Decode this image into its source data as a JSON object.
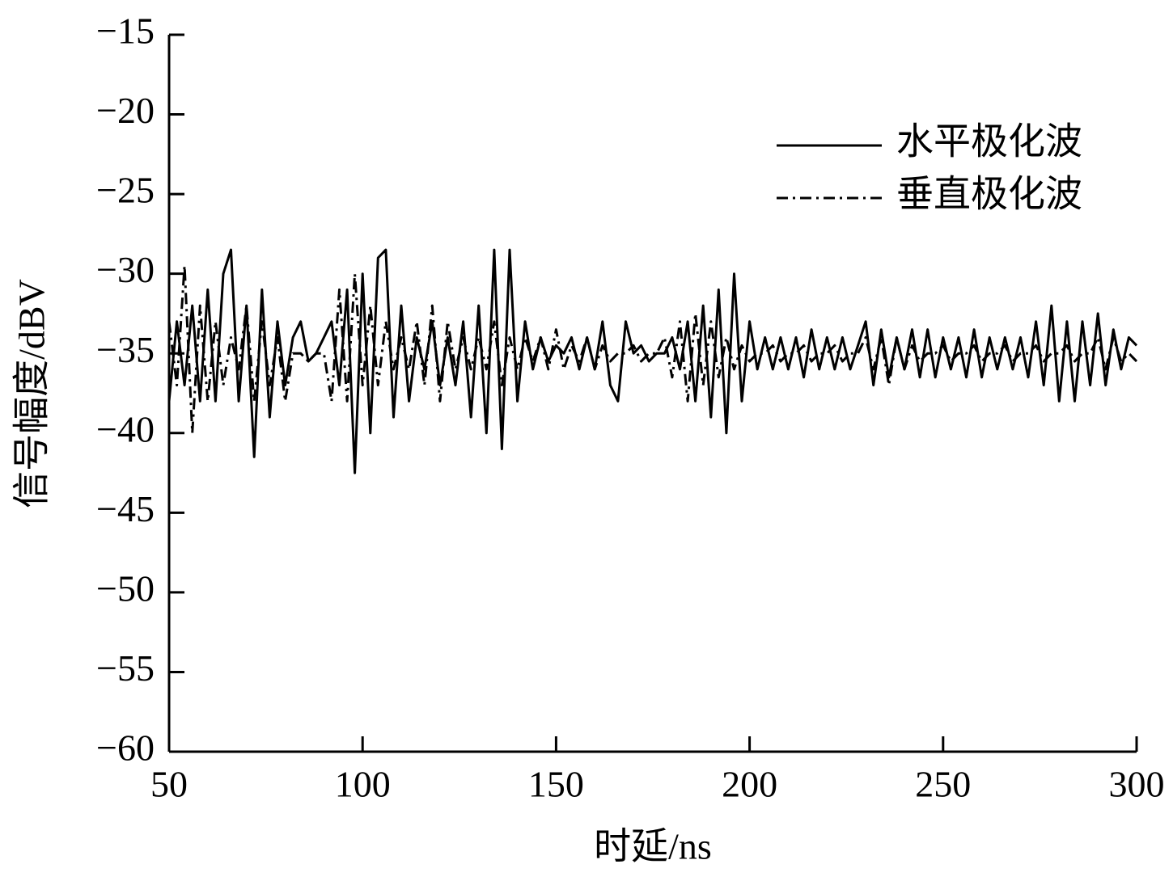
{
  "chart_data": {
    "type": "line",
    "xlabel": "时延/ns",
    "ylabel": "信号幅度/dBV",
    "xlim": [
      50,
      300
    ],
    "xticks": [
      50,
      100,
      150,
      200,
      250,
      300
    ],
    "ylim": [
      -60,
      -15
    ],
    "yticks": [
      {
        "value": -60,
        "label": "−60"
      },
      {
        "value": -55,
        "label": "−55"
      },
      {
        "value": -50,
        "label": "−50"
      },
      {
        "value": -45,
        "label": "−45"
      },
      {
        "value": -40,
        "label": "−40"
      },
      {
        "value": -35,
        "label": "−35"
      },
      {
        "value": -30,
        "label": "−30"
      },
      {
        "value": -25,
        "label": "−25"
      },
      {
        "value": -20,
        "label": "−20"
      },
      {
        "value": -15,
        "label": "−15"
      }
    ],
    "legend": "upper right",
    "x": [
      50,
      52,
      54,
      56,
      58,
      60,
      62,
      64,
      66,
      68,
      70,
      72,
      74,
      76,
      78,
      80,
      82,
      84,
      86,
      88,
      90,
      92,
      94,
      96,
      98,
      100,
      102,
      104,
      106,
      108,
      110,
      112,
      114,
      116,
      118,
      120,
      122,
      124,
      126,
      128,
      130,
      132,
      134,
      136,
      138,
      140,
      142,
      144,
      146,
      148,
      150,
      152,
      154,
      156,
      158,
      160,
      162,
      164,
      166,
      168,
      170,
      172,
      174,
      176,
      178,
      180,
      182,
      184,
      186,
      188,
      190,
      192,
      194,
      196,
      198,
      200,
      202,
      204,
      206,
      208,
      210,
      212,
      214,
      216,
      218,
      220,
      222,
      224,
      226,
      228,
      230,
      232,
      234,
      236,
      238,
      240,
      242,
      244,
      246,
      248,
      250,
      252,
      254,
      256,
      258,
      260,
      262,
      264,
      266,
      268,
      270,
      272,
      274,
      276,
      278,
      280,
      282,
      284,
      286,
      288,
      290,
      292,
      294,
      296,
      298,
      300
    ],
    "series": [
      {
        "name": "水平极化波",
        "color": "#000000",
        "dash": "solid",
        "values": [
          -38,
          -33,
          -37,
          -32,
          -38,
          -31,
          -38,
          -30,
          -28.5,
          -38,
          -32,
          -41.5,
          -31,
          -39,
          -33,
          -37,
          -34,
          -33,
          -35.5,
          -35,
          -34,
          -33,
          -37,
          -31,
          -42.5,
          -30,
          -40,
          -29,
          -28.5,
          -39,
          -32,
          -38,
          -34,
          -36,
          -33,
          -37,
          -34,
          -37,
          -33,
          -39,
          -32,
          -40,
          -28.5,
          -41,
          -28.5,
          -38,
          -33,
          -36,
          -34,
          -35.5,
          -34.5,
          -35,
          -34,
          -36,
          -34,
          -36,
          -33,
          -37,
          -38,
          -33,
          -35,
          -34.5,
          -35.5,
          -35,
          -35,
          -34,
          -36,
          -33,
          -38,
          -32,
          -39,
          -31,
          -40,
          -30,
          -38,
          -33,
          -36,
          -34,
          -36,
          -34,
          -36,
          -34,
          -36.5,
          -33.5,
          -36,
          -34,
          -36,
          -34,
          -36,
          -34.5,
          -33,
          -37,
          -33.5,
          -36.5,
          -34,
          -36,
          -33.5,
          -36.5,
          -33.5,
          -36.5,
          -34,
          -36,
          -34,
          -36.5,
          -33.5,
          -36.5,
          -34,
          -36,
          -34,
          -36,
          -34,
          -36.5,
          -33,
          -37,
          -32,
          -38,
          -33,
          -38,
          -33,
          -37,
          -32.5,
          -37,
          -33.5,
          -36,
          -34,
          -34.5
        ]
      },
      {
        "name": "垂直极化波",
        "color": "#000000",
        "dash": "dashdot",
        "values": [
          -33,
          -37,
          -29.5,
          -40,
          -32,
          -38,
          -33,
          -37,
          -34,
          -36,
          -32,
          -38,
          -33,
          -37,
          -34,
          -38,
          -35,
          -35,
          -35.5,
          -35,
          -35,
          -38,
          -31,
          -38,
          -30,
          -37,
          -32,
          -37,
          -33,
          -36,
          -34,
          -36,
          -33,
          -37,
          -32,
          -38,
          -33,
          -36,
          -34,
          -36,
          -34,
          -36,
          -33,
          -37,
          -34,
          -36,
          -34,
          -35.5,
          -34,
          -36,
          -33.5,
          -36,
          -34.5,
          -35.5,
          -34,
          -36,
          -34.5,
          -35.5,
          -35,
          -35,
          -34.5,
          -35.5,
          -35,
          -35,
          -34,
          -36.5,
          -33,
          -38,
          -32.5,
          -37,
          -33,
          -36.5,
          -34,
          -36,
          -34.5,
          -35.5,
          -35,
          -35,
          -34.5,
          -35.5,
          -35,
          -35,
          -34.5,
          -35.5,
          -35,
          -35,
          -34.5,
          -35.5,
          -35,
          -35,
          -34,
          -36,
          -34,
          -37,
          -34,
          -36,
          -34.5,
          -35.5,
          -35,
          -35,
          -34.5,
          -35.5,
          -35,
          -35,
          -34.5,
          -35.5,
          -35,
          -35,
          -34.5,
          -35.5,
          -35,
          -35,
          -34.5,
          -35.5,
          -35,
          -35,
          -34.5,
          -35.5,
          -35,
          -35,
          -34,
          -36,
          -34,
          -35.5,
          -35,
          -35.5
        ]
      }
    ]
  }
}
